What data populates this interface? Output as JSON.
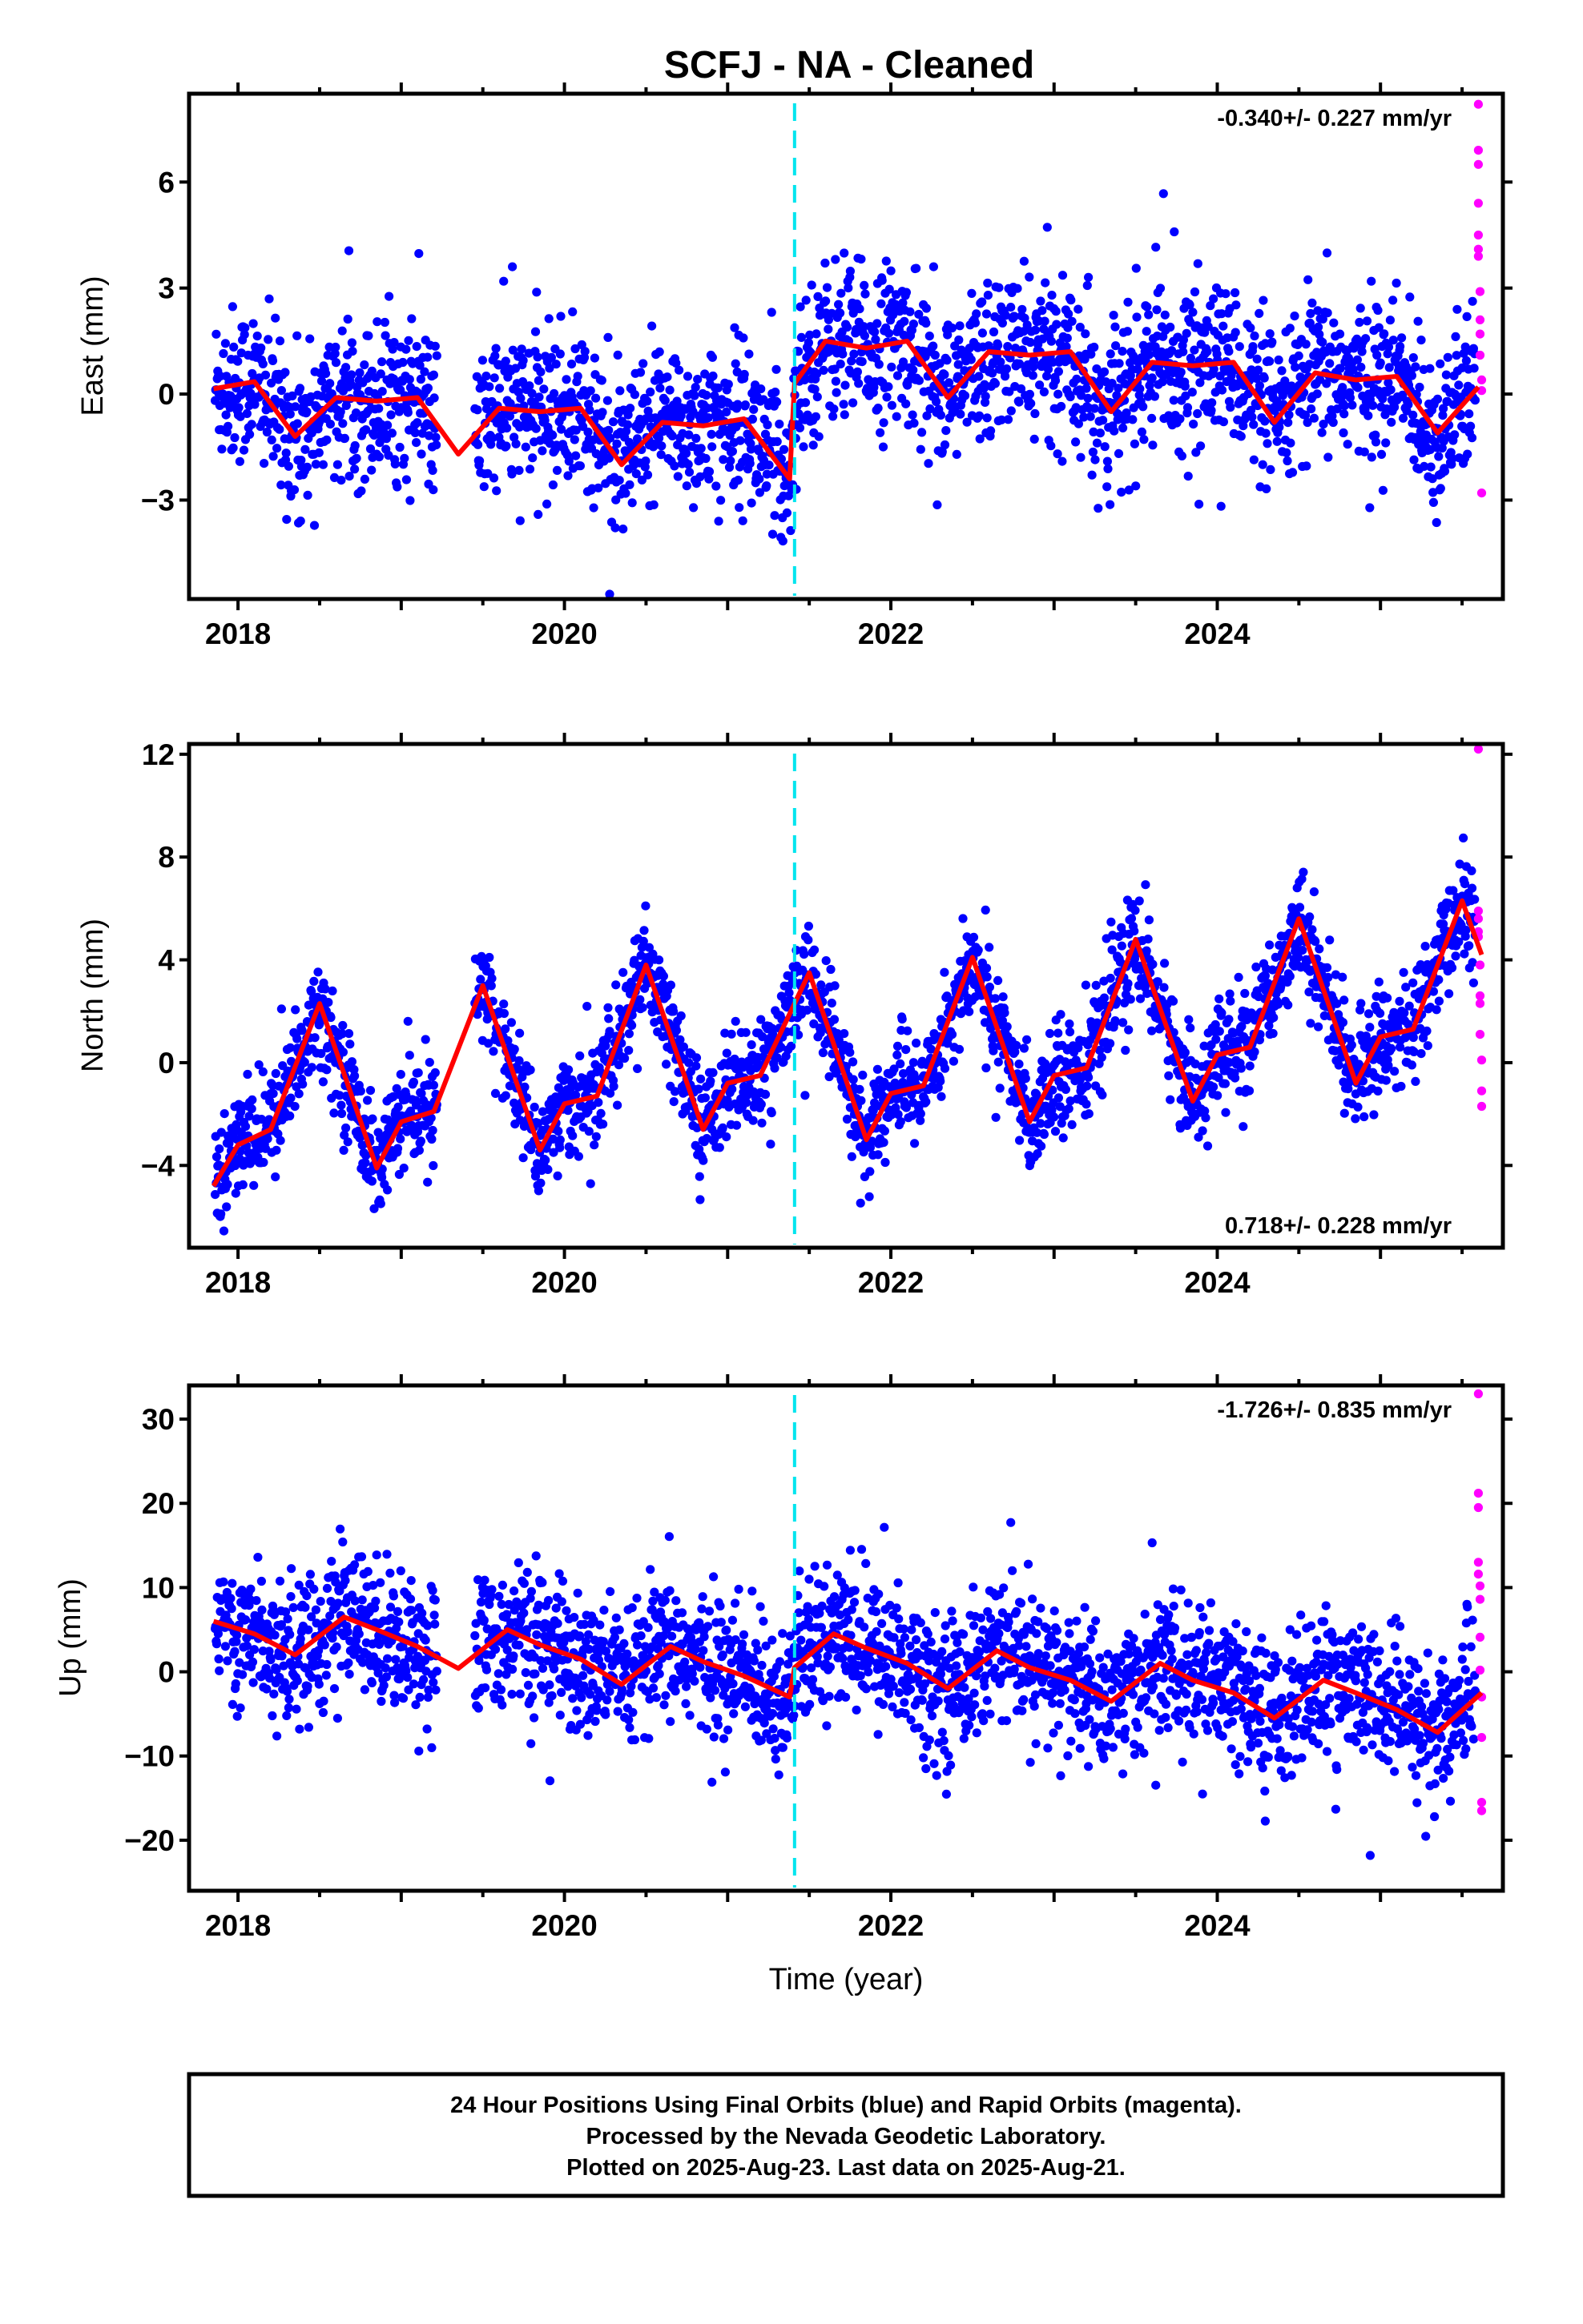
{
  "chart_data": {
    "title": "SCFJ  - NA - Cleaned",
    "type": "scatter",
    "x_range": [
      2017.7,
      2025.75
    ],
    "x_ticks": [
      "2018",
      "2020",
      "2022",
      "2024"
    ],
    "x_tick_values": [
      2018,
      2020,
      2022,
      2024
    ],
    "xlabel": "Time (year)",
    "offset_marker_year": 2021.41,
    "legend_note": [
      "24 Hour Positions Using Final Orbits (blue) and Rapid Orbits (magenta).",
      "Processed by the Nevada Geodetic Laboratory.",
      "Plotted on 2025-Aug-23. Last data on 2025-Aug-21."
    ],
    "colors": {
      "final": "#0000ff",
      "rapid": "#ff00ff",
      "model": "#ff0000",
      "offset": "#00e5ee"
    },
    "panels": [
      {
        "ylabel": "East (mm)",
        "ylim": [
          -5.8,
          8.5
        ],
        "yticks": [
          -3,
          0,
          3,
          6
        ],
        "ytick_labels": [
          "−3",
          "0",
          "3",
          "6"
        ],
        "rate": "-0.340+/- 0.227 mm/yr",
        "rate_position": "top-right",
        "noise": 1.1,
        "model_trend": [
          [
            2017.85,
            0.15
          ],
          [
            2018.1,
            0.35
          ],
          [
            2018.35,
            -1.2
          ],
          [
            2018.6,
            -0.1
          ],
          [
            2018.85,
            -0.2
          ],
          [
            2019.1,
            -0.1
          ],
          [
            2019.35,
            -1.7
          ],
          [
            2019.6,
            -0.4
          ],
          [
            2019.85,
            -0.5
          ],
          [
            2020.1,
            -0.4
          ],
          [
            2020.35,
            -2.0
          ],
          [
            2020.6,
            -0.8
          ],
          [
            2020.85,
            -0.9
          ],
          [
            2021.1,
            -0.7
          ],
          [
            2021.38,
            -2.4
          ],
          [
            2021.41,
            0.3
          ],
          [
            2021.6,
            1.5
          ],
          [
            2021.85,
            1.3
          ],
          [
            2022.1,
            1.5
          ],
          [
            2022.35,
            -0.1
          ],
          [
            2022.6,
            1.2
          ],
          [
            2022.85,
            1.1
          ],
          [
            2023.1,
            1.2
          ],
          [
            2023.35,
            -0.5
          ],
          [
            2023.6,
            0.9
          ],
          [
            2023.85,
            0.8
          ],
          [
            2024.1,
            0.9
          ],
          [
            2024.35,
            -0.8
          ],
          [
            2024.6,
            0.6
          ],
          [
            2024.85,
            0.4
          ],
          [
            2025.1,
            0.5
          ],
          [
            2025.35,
            -1.1
          ],
          [
            2025.6,
            0.2
          ]
        ],
        "rapid_points": [
          [
            2025.6,
            8.2
          ],
          [
            2025.6,
            6.9
          ],
          [
            2025.6,
            6.5
          ],
          [
            2025.6,
            5.4
          ],
          [
            2025.6,
            4.5
          ],
          [
            2025.6,
            4.1
          ],
          [
            2025.6,
            3.9
          ],
          [
            2025.61,
            2.9
          ],
          [
            2025.61,
            2.1
          ],
          [
            2025.61,
            1.7
          ],
          [
            2025.61,
            1.1
          ],
          [
            2025.62,
            0.4
          ],
          [
            2025.62,
            0.1
          ],
          [
            2025.62,
            -2.8
          ]
        ]
      },
      {
        "ylabel": "North (mm)",
        "ylim": [
          -7.2,
          12.4
        ],
        "yticks": [
          -4,
          0,
          4,
          8,
          12
        ],
        "ytick_labels": [
          "−4",
          "0",
          "4",
          "8",
          "12"
        ],
        "rate": "0.718+/- 0.228 mm/yr",
        "rate_position": "bottom-right",
        "noise": 1.0,
        "model_trend": [
          [
            2017.85,
            -4.8
          ],
          [
            2018.0,
            -3.2
          ],
          [
            2018.2,
            -2.6
          ],
          [
            2018.5,
            2.3
          ],
          [
            2018.85,
            -4.1
          ],
          [
            2019.0,
            -2.3
          ],
          [
            2019.2,
            -1.9
          ],
          [
            2019.5,
            3.0
          ],
          [
            2019.85,
            -3.4
          ],
          [
            2020.0,
            -1.6
          ],
          [
            2020.2,
            -1.3
          ],
          [
            2020.5,
            3.8
          ],
          [
            2020.85,
            -2.6
          ],
          [
            2021.0,
            -0.8
          ],
          [
            2021.2,
            -0.5
          ],
          [
            2021.5,
            3.5
          ],
          [
            2021.85,
            -3.0
          ],
          [
            2022.0,
            -1.2
          ],
          [
            2022.2,
            -0.9
          ],
          [
            2022.5,
            4.1
          ],
          [
            2022.85,
            -2.3
          ],
          [
            2023.0,
            -0.5
          ],
          [
            2023.2,
            -0.2
          ],
          [
            2023.5,
            4.8
          ],
          [
            2023.85,
            -1.5
          ],
          [
            2024.0,
            0.3
          ],
          [
            2024.2,
            0.6
          ],
          [
            2024.5,
            5.6
          ],
          [
            2024.85,
            -0.8
          ],
          [
            2025.0,
            1.0
          ],
          [
            2025.2,
            1.3
          ],
          [
            2025.5,
            6.3
          ],
          [
            2025.62,
            4.2
          ]
        ],
        "rapid_points": [
          [
            2025.6,
            12.2
          ],
          [
            2025.6,
            5.9
          ],
          [
            2025.6,
            5.6
          ],
          [
            2025.6,
            5.1
          ],
          [
            2025.6,
            4.9
          ],
          [
            2025.61,
            3.8
          ],
          [
            2025.61,
            2.6
          ],
          [
            2025.61,
            2.3
          ],
          [
            2025.61,
            1.1
          ],
          [
            2025.62,
            0.1
          ],
          [
            2025.62,
            -1.1
          ],
          [
            2025.62,
            -1.7
          ]
        ]
      },
      {
        "ylabel": "Up (mm)",
        "ylim": [
          -26,
          34
        ],
        "yticks": [
          -20,
          -10,
          0,
          10,
          20,
          30
        ],
        "ytick_labels": [
          "−20",
          "−10",
          "0",
          "10",
          "20",
          "30"
        ],
        "rate": "-1.726+/- 0.835 mm/yr",
        "rate_position": "top-right",
        "noise": 4.2,
        "model_trend": [
          [
            2017.85,
            6.0
          ],
          [
            2018.1,
            4.5
          ],
          [
            2018.35,
            2.0
          ],
          [
            2018.65,
            6.5
          ],
          [
            2018.85,
            5.0
          ],
          [
            2019.1,
            3.0
          ],
          [
            2019.35,
            0.4
          ],
          [
            2019.65,
            5.0
          ],
          [
            2019.85,
            3.2
          ],
          [
            2020.1,
            1.5
          ],
          [
            2020.35,
            -1.5
          ],
          [
            2020.65,
            3.0
          ],
          [
            2020.85,
            1.2
          ],
          [
            2021.1,
            -0.5
          ],
          [
            2021.38,
            -3.0
          ],
          [
            2021.41,
            0.5
          ],
          [
            2021.65,
            4.5
          ],
          [
            2021.85,
            2.8
          ],
          [
            2022.1,
            1.0
          ],
          [
            2022.35,
            -2.0
          ],
          [
            2022.65,
            2.5
          ],
          [
            2022.85,
            0.5
          ],
          [
            2023.1,
            -1.0
          ],
          [
            2023.35,
            -3.5
          ],
          [
            2023.65,
            1.0
          ],
          [
            2023.85,
            -1.0
          ],
          [
            2024.1,
            -2.5
          ],
          [
            2024.35,
            -5.5
          ],
          [
            2024.65,
            -1.0
          ],
          [
            2024.85,
            -2.5
          ],
          [
            2025.1,
            -4.5
          ],
          [
            2025.35,
            -7.2
          ],
          [
            2025.62,
            -2.5
          ]
        ],
        "rapid_points": [
          [
            2025.6,
            33.0
          ],
          [
            2025.6,
            21.2
          ],
          [
            2025.6,
            19.5
          ],
          [
            2025.6,
            13.0
          ],
          [
            2025.6,
            11.6
          ],
          [
            2025.61,
            10.2
          ],
          [
            2025.61,
            8.6
          ],
          [
            2025.61,
            4.1
          ],
          [
            2025.61,
            0.2
          ],
          [
            2025.62,
            -3.0
          ],
          [
            2025.62,
            -7.8
          ],
          [
            2025.62,
            -15.5
          ],
          [
            2025.62,
            -16.5
          ]
        ]
      }
    ]
  }
}
